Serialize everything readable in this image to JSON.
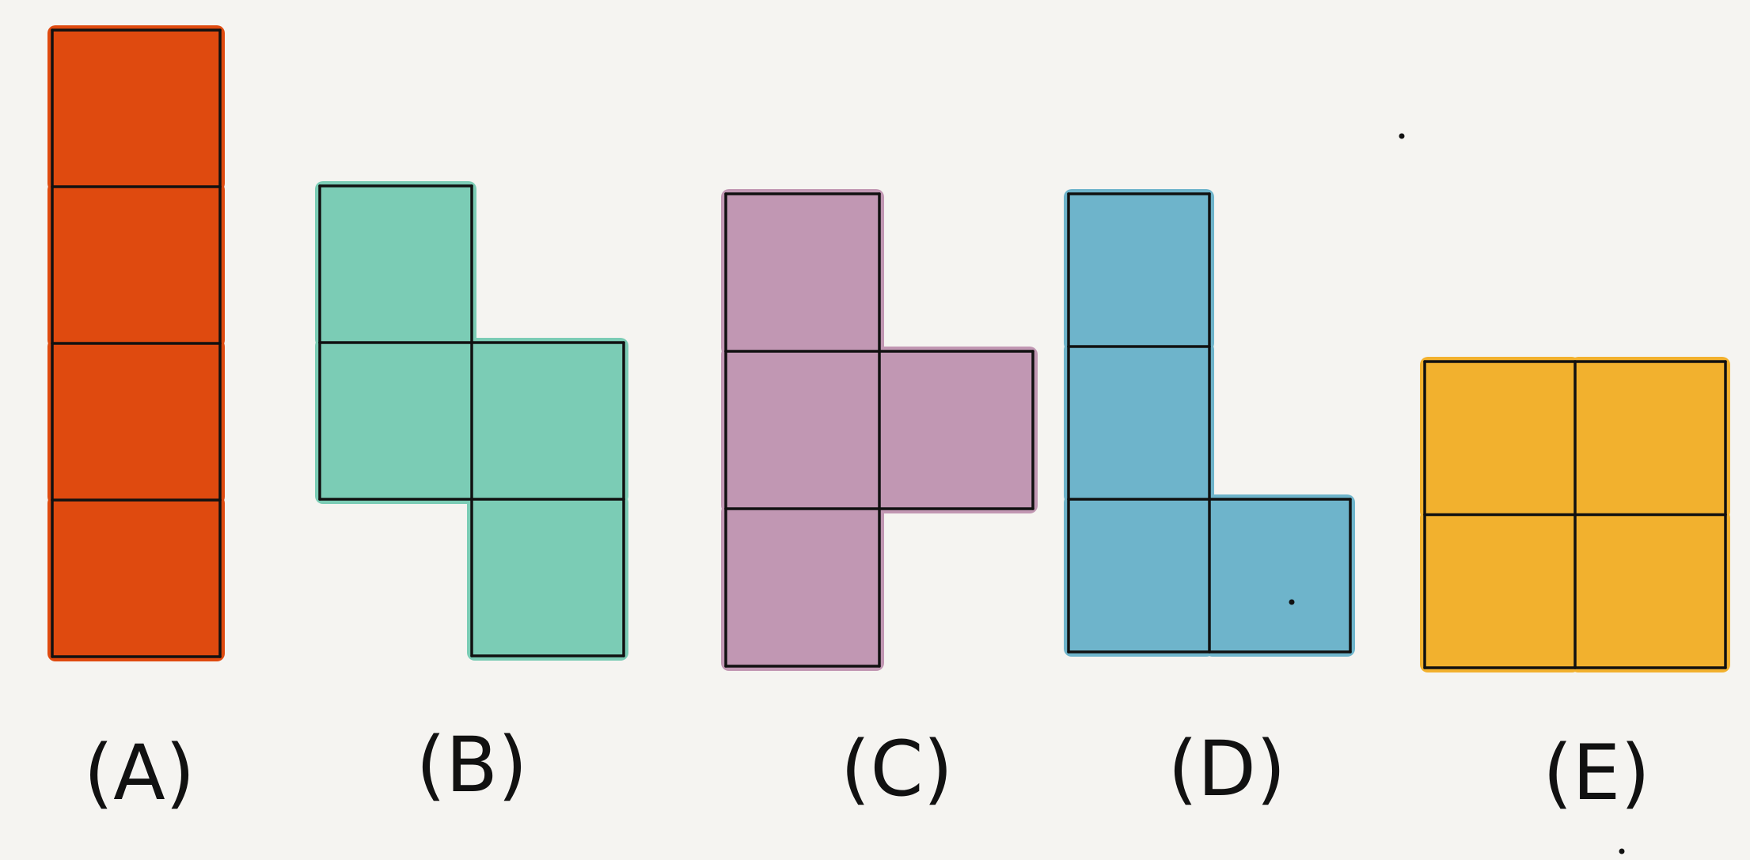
{
  "figure": {
    "background": "#f5f4f1",
    "line_color": "#111111",
    "pieces": [
      {
        "id": "A",
        "label": "(A)",
        "shape": "I-tetromino",
        "color": "#df4a0f",
        "cells": [
          [
            0,
            0
          ],
          [
            0,
            1
          ],
          [
            0,
            2
          ],
          [
            0,
            3
          ]
        ]
      },
      {
        "id": "B",
        "label": "(B)",
        "shape": "S-tetromino",
        "color": "#7bccb5",
        "cells": [
          [
            0,
            0
          ],
          [
            0,
            1
          ],
          [
            1,
            1
          ],
          [
            1,
            2
          ]
        ]
      },
      {
        "id": "C",
        "label": "(C)",
        "shape": "T-tetromino",
        "color": "#c197b3",
        "cells": [
          [
            0,
            0
          ],
          [
            0,
            1
          ],
          [
            1,
            1
          ],
          [
            0,
            2
          ]
        ]
      },
      {
        "id": "D",
        "label": "(D)",
        "shape": "L-tetromino",
        "color": "#6eb4cb",
        "cells": [
          [
            0,
            0
          ],
          [
            0,
            1
          ],
          [
            0,
            2
          ],
          [
            1,
            2
          ]
        ]
      },
      {
        "id": "E",
        "label": "(E)",
        "shape": "O-tetromino",
        "color": "#f2b12e",
        "cells": [
          [
            0,
            0
          ],
          [
            1,
            0
          ],
          [
            0,
            1
          ],
          [
            1,
            1
          ]
        ]
      }
    ]
  }
}
